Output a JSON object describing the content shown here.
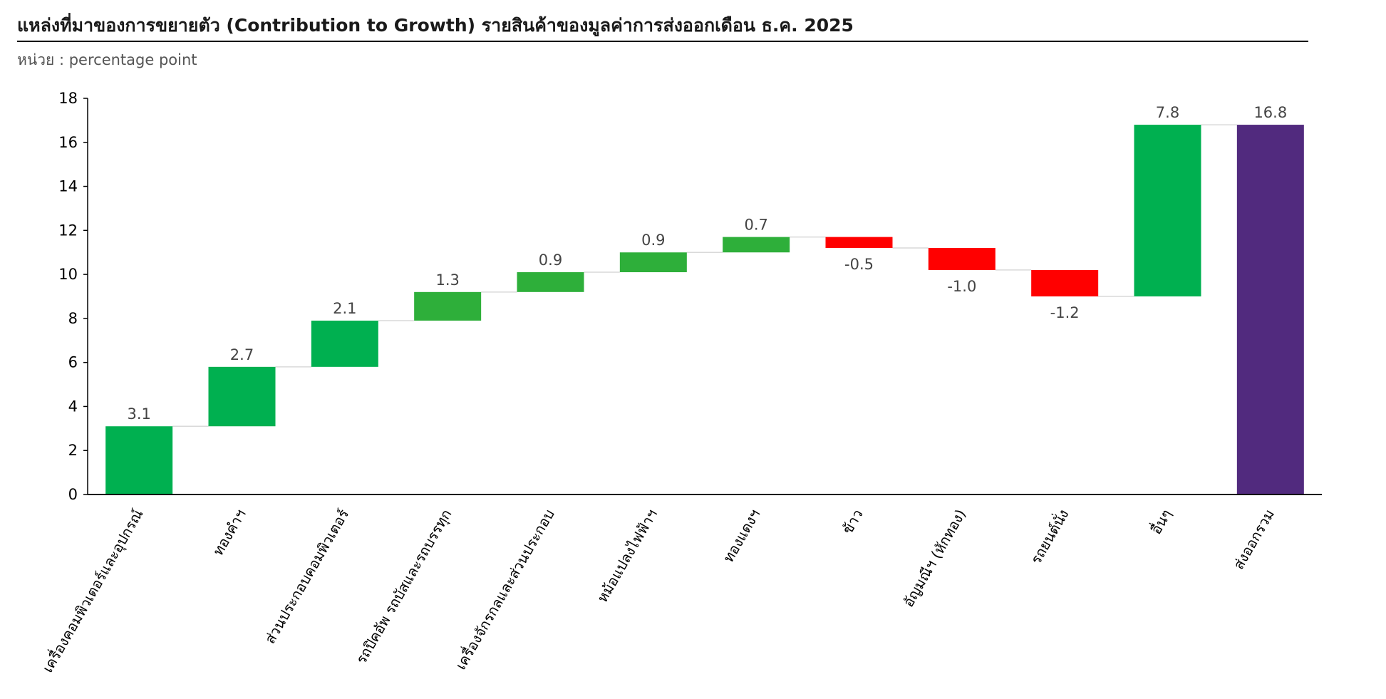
{
  "header": {
    "title": "แหล่งที่มาของการขยายตัว (Contribution to Growth) รายสินค้าของมูลค่าการส่งออกเดือน ธ.ค. 2025",
    "unit": "หน่วย : percentage point"
  },
  "chart_data": {
    "type": "bar",
    "subtype": "waterfall",
    "title": "แหล่งที่มาของการขยายตัว (Contribution to Growth) รายสินค้าของมูลค่าการส่งออกเดือน ธ.ค. 2025",
    "xlabel": "",
    "ylabel": "",
    "ylim": [
      0,
      18
    ],
    "yticks": [
      0,
      2,
      4,
      6,
      8,
      10,
      12,
      14,
      16,
      18
    ],
    "grid": false,
    "legend": "none",
    "categories": [
      "เครื่องคอมพิวเตอร์และอุปกรณ์",
      "ทองคำฯ",
      "ส่วนประกอบคอมพิวเตอร์",
      "รถปิคอัพ รถบัสและรถบรรทุก",
      "เครื่องจักรกลและส่วนประกอบ",
      "หม้อแปลงไฟฟ้าฯ",
      "ทองแดงฯ",
      "ข้าว",
      "อัญมณีฯ (หักทอง)",
      "รถยนต์นั่ง",
      "อื่นๆ",
      "ส่งออกรวม"
    ],
    "values": [
      3.1,
      2.7,
      2.1,
      1.3,
      0.9,
      0.9,
      0.7,
      -0.5,
      -1.0,
      -1.2,
      7.8,
      16.8
    ],
    "bar_starts": [
      0,
      3.1,
      5.8,
      7.9,
      9.2,
      10.1,
      11.0,
      11.7,
      11.2,
      10.2,
      9.0,
      0
    ],
    "is_total": [
      false,
      false,
      false,
      false,
      false,
      false,
      false,
      false,
      false,
      false,
      false,
      true
    ],
    "data_labels": [
      "3.1",
      "2.7",
      "2.1",
      "1.3",
      "0.9",
      "0.9",
      "0.7",
      "-0.5",
      "-1.0",
      "-1.2",
      "7.8",
      "16.8"
    ],
    "colors": {
      "increase": "#00b050",
      "increase_alt": "#2eaf3a",
      "decrease": "#ff0000",
      "total": "#512a7e",
      "connector": "#d9d9d9",
      "axis": "#000000"
    },
    "bar_colors": [
      "#00b050",
      "#00b050",
      "#00b050",
      "#2eaf3a",
      "#2eaf3a",
      "#2eaf3a",
      "#2eaf3a",
      "#ff0000",
      "#ff0000",
      "#ff0000",
      "#00b050",
      "#512a7e"
    ]
  }
}
